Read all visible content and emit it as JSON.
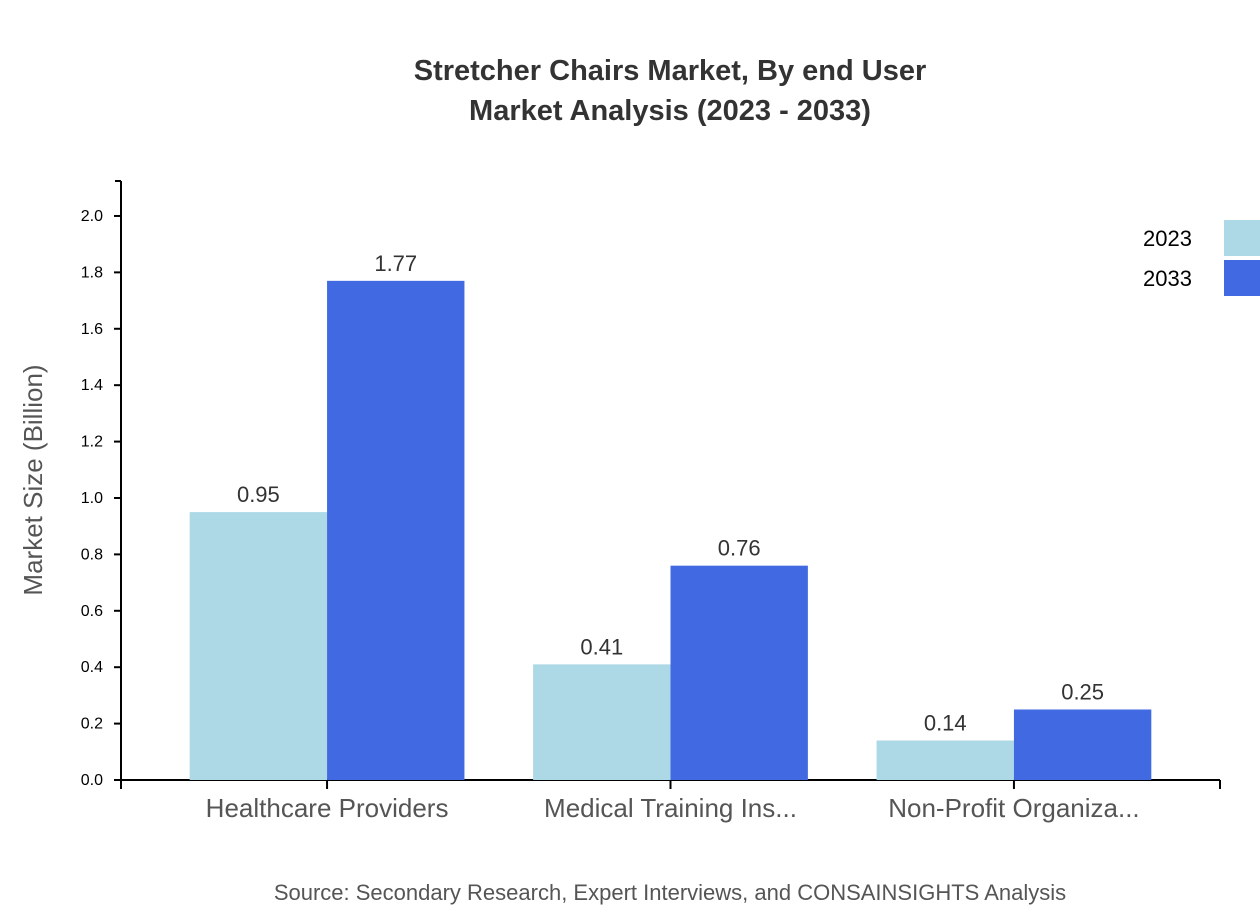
{
  "chart_data": {
    "type": "bar",
    "title": "Stretcher Chairs Market, By end User",
    "subtitle": "Market Analysis (2023 - 2033)",
    "y_label": "Market Size (Billion)",
    "source": "Source: Secondary Research, Expert Interviews, and CONSAINSIGHTS Analysis",
    "categories": [
      "Healthcare Providers",
      "Medical Training Ins...",
      "Non-Profit Organiza..."
    ],
    "series": [
      {
        "name": "2023",
        "color": "#add8e6",
        "values": [
          0.95,
          0.41,
          0.14
        ]
      },
      {
        "name": "2033",
        "color": "#4169e1",
        "values": [
          1.77,
          0.76,
          0.25
        ]
      }
    ],
    "ylim": [
      0,
      2.124
    ],
    "yticks": [
      {
        "value": 0,
        "label": "0.0"
      },
      0.2,
      0.4,
      0.6,
      0.8,
      {
        "value": 1,
        "label": "1.0"
      },
      1.2,
      1.4,
      1.6,
      1.8,
      {
        "value": 2,
        "label": "2.0"
      }
    ],
    "legend": "top-right"
  }
}
